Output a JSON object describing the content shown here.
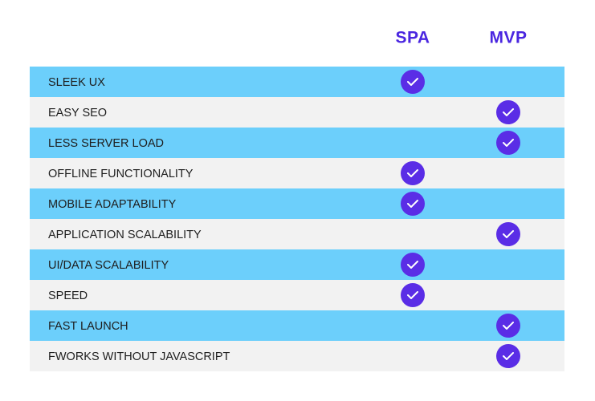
{
  "header": {
    "columns": [
      "SPA",
      "MVP"
    ]
  },
  "table": {
    "rows": [
      {
        "label": "SLEEK UX",
        "checks": [
          true,
          false
        ]
      },
      {
        "label": "EASY SEO",
        "checks": [
          false,
          true
        ]
      },
      {
        "label": "LESS SERVER LOAD",
        "checks": [
          false,
          true
        ]
      },
      {
        "label": "OFFLINE FUNCTIONALITY",
        "checks": [
          true,
          false
        ]
      },
      {
        "label": "MOBILE ADAPTABILITY",
        "checks": [
          true,
          false
        ]
      },
      {
        "label": "APPLICATION SCALABILITY",
        "checks": [
          false,
          true
        ]
      },
      {
        "label": "UI/DATA SCALABILITY",
        "checks": [
          true,
          false
        ]
      },
      {
        "label": "SPEED",
        "checks": [
          true,
          false
        ]
      },
      {
        "label": "FAST LAUNCH",
        "checks": [
          false,
          true
        ]
      },
      {
        "label": "FWORKS WITHOUT JAVASCRIPT",
        "checks": [
          false,
          true
        ]
      }
    ]
  }
}
